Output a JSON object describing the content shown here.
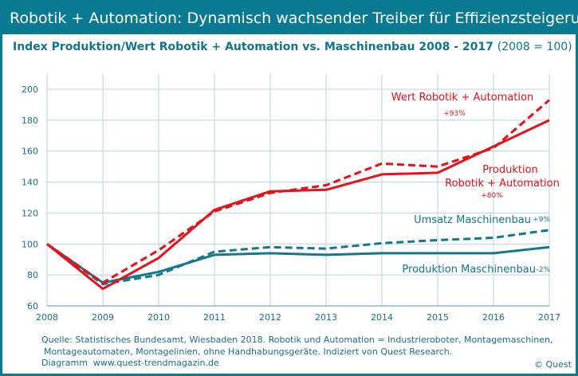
{
  "title": "Robotik + Automation: Dynamisch wachsender Treiber für Effizienzsteigerung",
  "subtitle": "Index Produktion/Wert Robotik + Automation vs. Maschinenbau 2008 - 2017",
  "subtitle_note": "(2008 = 100)",
  "footer": {
    "line1": "Quelle: Statistisches Bundesamt, Wiesbaden 2018. Robotik und Automation = Industrieroboter, Montagemaschinen,",
    "line2": "Montageautomaten, Montagelinien, ohne Handhabungsgeräte. Indiziert von Quest Research.",
    "line3": "Diagramm  www.quest-trendmagazin.de",
    "copyright": "© Quest"
  },
  "colors": {
    "red": "#e8101a",
    "teal": "#12778f",
    "grid": "#b9d3dd",
    "header": "#0a7a93"
  },
  "chart_data": {
    "type": "line",
    "x": [
      2008,
      2009,
      2010,
      2011,
      2012,
      2013,
      2014,
      2015,
      2016,
      2017
    ],
    "xlim": [
      2008,
      2017
    ],
    "ylim": [
      60,
      210
    ],
    "yticks": [
      60,
      80,
      100,
      120,
      140,
      160,
      180,
      200
    ],
    "grid": true,
    "series": [
      {
        "name": "Wert Robotik + Automation",
        "change": "+93%",
        "color": "#e8101a",
        "style": "dashed",
        "values": [
          100,
          75,
          96,
          121,
          133,
          138,
          152,
          150,
          162,
          193
        ]
      },
      {
        "name": "Produktion Robotik + Automation",
        "name_line1": "Produktion",
        "name_line2": "Robotik + Automation",
        "change": "+80%",
        "color": "#e8101a",
        "style": "solid",
        "values": [
          100,
          71,
          91,
          122,
          134,
          135,
          145,
          146,
          163,
          180
        ]
      },
      {
        "name": "Umsatz Maschinenbau",
        "change": "+9%",
        "color": "#12778f",
        "style": "dashed",
        "values": [
          100,
          74,
          80,
          95,
          98,
          97,
          100.5,
          102.5,
          104,
          109
        ]
      },
      {
        "name": "Produktion Maschinenbau",
        "change": "-2%",
        "color": "#12778f",
        "style": "solid",
        "values": [
          100,
          75,
          82,
          93,
          94,
          93,
          94,
          94,
          94,
          98
        ]
      }
    ]
  }
}
